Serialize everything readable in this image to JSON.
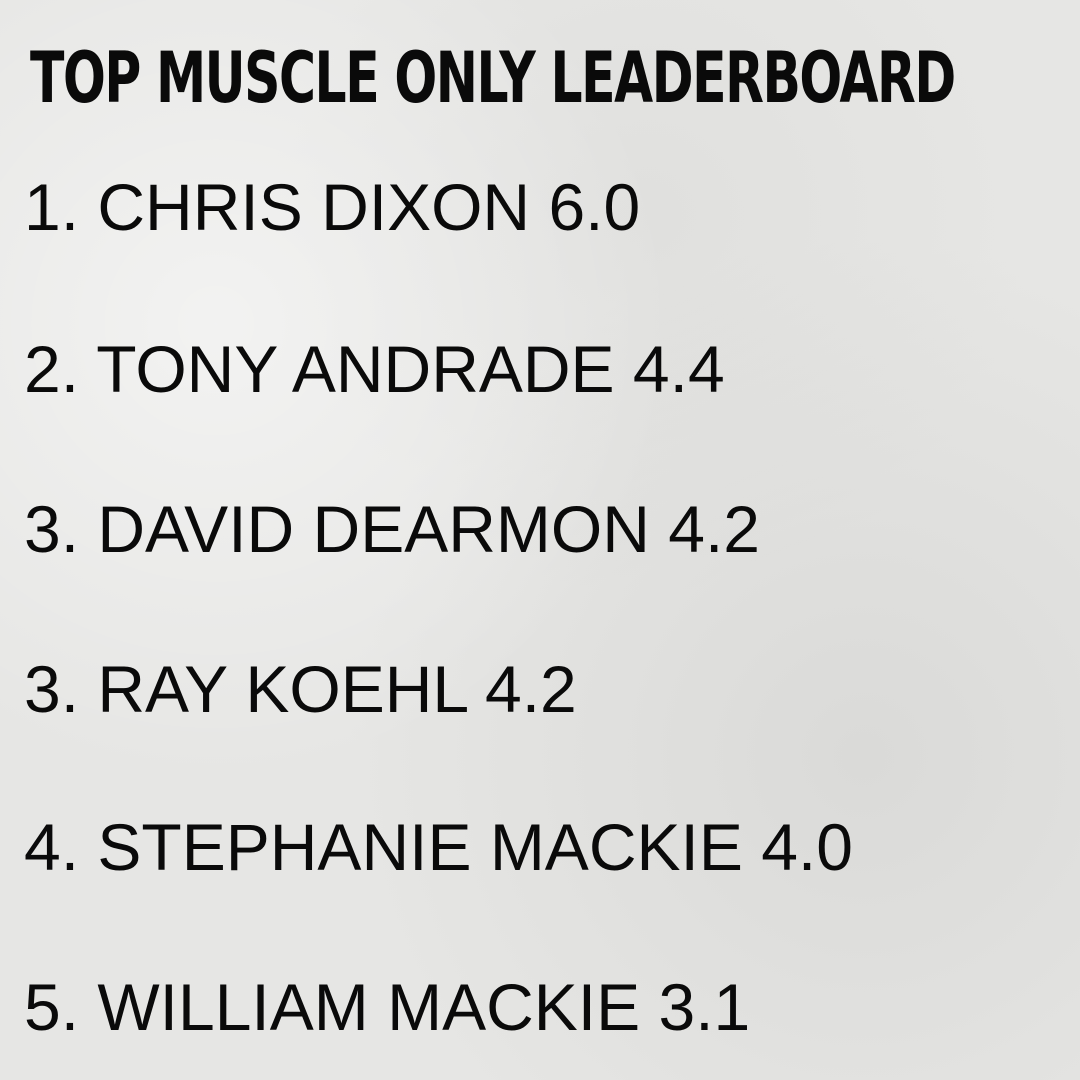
{
  "title": "TOP MUSCLE ONLY LEADERBOARD",
  "entries": [
    {
      "rank": "1.",
      "name": "CHRIS DIXON",
      "score": "6.0"
    },
    {
      "rank": "2.",
      "name": "TONY ANDRADE",
      "score": "4.4"
    },
    {
      "rank": "3.",
      "name": "DAVID DEARMON",
      "score": "4.2"
    },
    {
      "rank": "3.",
      "name": "RAY KOEHL",
      "score": "4.2"
    },
    {
      "rank": "4.",
      "name": "STEPHANIE MACKIE",
      "score": "4.0"
    },
    {
      "rank": "5.",
      "name": "WILLIAM MACKIE",
      "score": "3.1"
    }
  ]
}
